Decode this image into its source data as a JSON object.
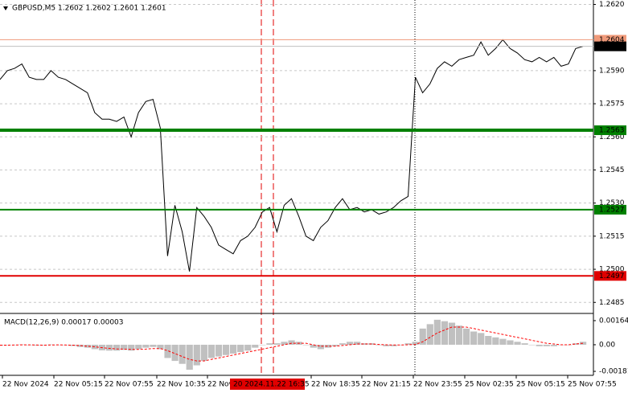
{
  "chart_data": [
    {
      "type": "line",
      "title": "GBPUSD,M5  1.2602 1.2602 1.2601 1.2601",
      "series": [
        {
          "color": "#000000",
          "values": [
            1.2586,
            1.259,
            1.2591,
            1.2593,
            1.2587,
            1.2586,
            1.2586,
            1.259,
            1.2587,
            1.2586,
            1.2584,
            1.2582,
            1.258,
            1.2571,
            1.2568,
            1.2568,
            1.2567,
            1.2569,
            1.256,
            1.2571,
            1.2576,
            1.2577,
            1.2564,
            1.2506,
            1.2529,
            1.2517,
            1.2499,
            1.2528,
            1.2524,
            1.2519,
            1.2511,
            1.2509,
            1.2507,
            1.2513,
            1.2515,
            1.2519,
            1.2526,
            1.2528,
            1.2517,
            1.2529,
            1.2532,
            1.2524,
            1.2515,
            1.2513,
            1.2519,
            1.2522,
            1.2528,
            1.2532,
            1.2527,
            1.2528,
            1.2526,
            1.2527,
            1.2525,
            1.2526,
            1.2528,
            1.2531,
            1.2533,
            1.2587,
            1.258,
            1.2584,
            1.2591,
            1.2594,
            1.2592,
            1.2595,
            1.2596,
            1.2597,
            1.2603,
            1.2597,
            1.26,
            1.2604,
            1.26,
            1.2598,
            1.2595,
            1.2594,
            1.2596,
            1.2594,
            1.2596,
            1.2592,
            1.2593,
            1.26,
            1.2601
          ]
        }
      ],
      "ylim": [
        1.248,
        1.2622
      ],
      "yticks": [
        {
          "value": 1.262,
          "label": "1.2620"
        },
        {
          "value": 1.259,
          "label": "1.2590"
        },
        1.2575,
        {
          "value": 1.256,
          "label": "1.2560"
        },
        1.2545,
        {
          "value": 1.253,
          "label": "1.2530"
        },
        1.2515,
        {
          "value": 1.25,
          "label": "1.2500"
        },
        1.2485
      ],
      "grid": true,
      "levels": [
        {
          "value": 1.2604,
          "color": "#f09a7a",
          "width": 1
        },
        {
          "value": 1.2601,
          "color": "#c0c0c0",
          "label_color": "#000000",
          "width": 1
        },
        {
          "value": 1.2563,
          "color": "#008000",
          "width": 4
        },
        {
          "value": 1.2527,
          "color": "#008000",
          "width": 2
        },
        {
          "value": 1.2497,
          "color": "#e00000",
          "width": 2
        }
      ],
      "x_tick_labels": [
        "22 Nov 2024",
        "22 Nov 05:15",
        "22 Nov 07:55",
        "22 Nov 10:35",
        "22 Nov",
        "22 Nov 18:35",
        "22 Nov 21:15",
        "22 Nov 23:55",
        "25 Nov 02:35",
        "25 Nov 05:15",
        "25 Nov 07:55"
      ],
      "cursor_label": "20 2024.11.22 16:35"
    },
    {
      "type": "macd",
      "title": "MACD(12,26,9) 0.00017 0.00003",
      "series": [
        {
          "kind": "histogram",
          "color": "#c0c0c0",
          "values": [
            -5e-05,
            -3e-05,
            0,
            2e-05,
            -2e-05,
            -5e-05,
            -4e-05,
            2e-05,
            0,
            -3e-05,
            -8e-05,
            -0.00015,
            -0.0002,
            -0.0003,
            -0.00038,
            -0.0004,
            -0.0004,
            -0.00035,
            -0.0004,
            -0.0003,
            -0.0002,
            -0.00015,
            -0.0003,
            -0.0009,
            -0.0011,
            -0.0013,
            -0.0017,
            -0.0014,
            -0.0011,
            -0.0009,
            -0.0008,
            -0.0007,
            -0.0006,
            -0.0005,
            -0.0004,
            -0.0002,
            0,
            0.0001,
            0.0001,
            0.0002,
            0.0003,
            0.0002,
            0,
            -0.0002,
            -0.0003,
            -0.0002,
            -0.0001,
            0.0001,
            0.0002,
            0.0002,
            0.0001,
            0.0001,
            0,
            -0.0001,
            -0.0001,
            0,
            0.0001,
            0.0002,
            0.0011,
            0.0014,
            0.0017,
            0.0016,
            0.0015,
            0.0013,
            0.0011,
            0.0009,
            0.0008,
            0.0006,
            0.0005,
            0.0004,
            0.0003,
            0.0002,
            0.0001,
            0,
            -0.0001,
            -0.0001,
            -0.0001,
            0,
            0,
            0.0001,
            0.0002
          ]
        },
        {
          "kind": "line",
          "color": "#ff0000",
          "dashed": true,
          "values": [
            -3e-05,
            -3e-05,
            -2e-05,
            -1e-05,
            -1e-05,
            -2e-05,
            -3e-05,
            -2e-05,
            -1e-05,
            -2e-05,
            -3e-05,
            -6e-05,
            -0.0001,
            -0.00014,
            -0.0002,
            -0.00025,
            -0.00028,
            -0.0003,
            -0.00032,
            -0.00032,
            -0.0003,
            -0.00026,
            -0.00026,
            -0.0004,
            -0.0006,
            -0.0008,
            -0.001,
            -0.0011,
            -0.0011,
            -0.001,
            -0.0009,
            -0.0008,
            -0.0007,
            -0.0006,
            -0.0005,
            -0.0004,
            -0.0003,
            -0.0002,
            -0.0001,
            0,
            0.0001,
            0.0001,
            0.0001,
            0,
            -0.0001,
            -0.0001,
            -0.0001,
            -5e-05,
            0,
            5e-05,
            5e-05,
            5e-05,
            2e-05,
            0,
            -2e-05,
            -2e-05,
            0,
            2e-05,
            0.0002,
            0.0005,
            0.0008,
            0.001,
            0.0012,
            0.0012,
            0.0012,
            0.0011,
            0.001,
            0.0009,
            0.0008,
            0.0007,
            0.0006,
            0.0005,
            0.0004,
            0.0003,
            0.0002,
            0.0001,
            5e-05,
            0,
            0,
            5e-05,
            0.0001
          ]
        }
      ],
      "ylim": [
        -0.00208,
        0.00202
      ],
      "yticks": [
        0.00164,
        {
          "value": 0,
          "label": "0.00"
        },
        -0.00181
      ]
    }
  ]
}
